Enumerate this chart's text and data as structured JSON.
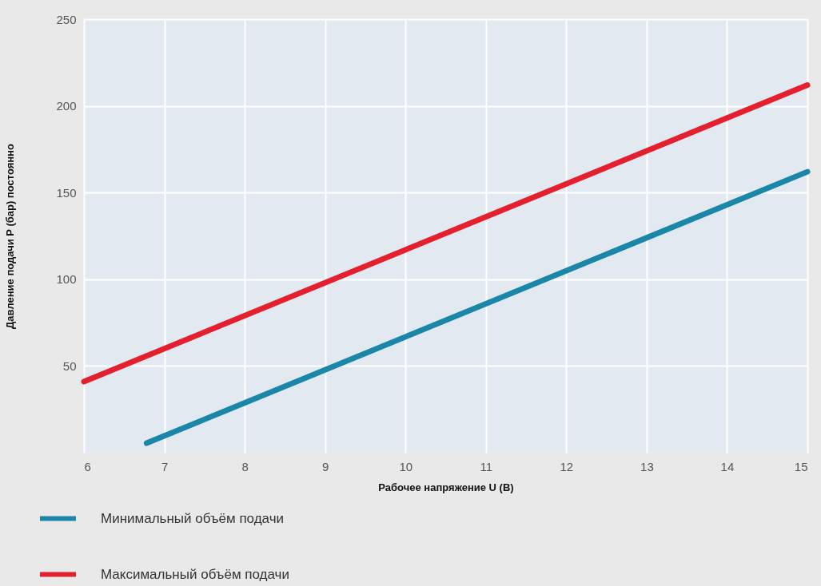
{
  "chart_data": {
    "type": "line",
    "xlabel": "Рабочее напряжение U (В)",
    "ylabel": "Давление подачи P (бар) постоянно",
    "xlim": [
      6,
      15
    ],
    "xticks": [
      6,
      7,
      8,
      9,
      10,
      11,
      12,
      13,
      14,
      15
    ],
    "ylim": [
      0,
      250
    ],
    "yticks": [
      50,
      100,
      150,
      200,
      250
    ],
    "grid": true,
    "legend": "bottom left",
    "series": [
      {
        "name": "Минимальный объём подачи",
        "color": "#1a86a8",
        "x": [
          6.78,
          15
        ],
        "values": [
          5.5,
          162
        ]
      },
      {
        "name": "Максимальный объём подачи",
        "color": "#e5202e",
        "x": [
          6,
          15
        ],
        "values": [
          41,
          212
        ]
      }
    ]
  }
}
